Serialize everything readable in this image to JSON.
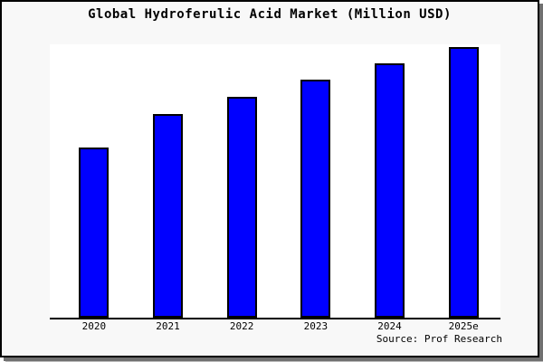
{
  "figure": {
    "source_credit": "Source: Prof Research",
    "colors": {
      "figure_bg": "#f8f8f8",
      "plot_bg": "#ffffff",
      "frame_border": "#000000",
      "axis": "#000000",
      "bar_fill": "#0000ff",
      "bar_border": "#000000",
      "shadow": "#707070"
    }
  },
  "chart_data": {
    "type": "bar",
    "title": "Global Hydroferulic Acid Market (Million USD)",
    "categories": [
      "2020",
      "2021",
      "2022",
      "2023",
      "2024",
      "2025e"
    ],
    "values": [
      62.3,
      74.5,
      80.8,
      87.1,
      93.0,
      99.0
    ],
    "value_note": "No y-axis ticks or labels are shown in the chart; values are estimated bar heights as percent of the plot-area height (axis max = 100).",
    "xlabel": "",
    "ylabel": "",
    "ylim": [
      0,
      100
    ],
    "grid": false,
    "legend": false,
    "series_color": "#0000ff"
  }
}
